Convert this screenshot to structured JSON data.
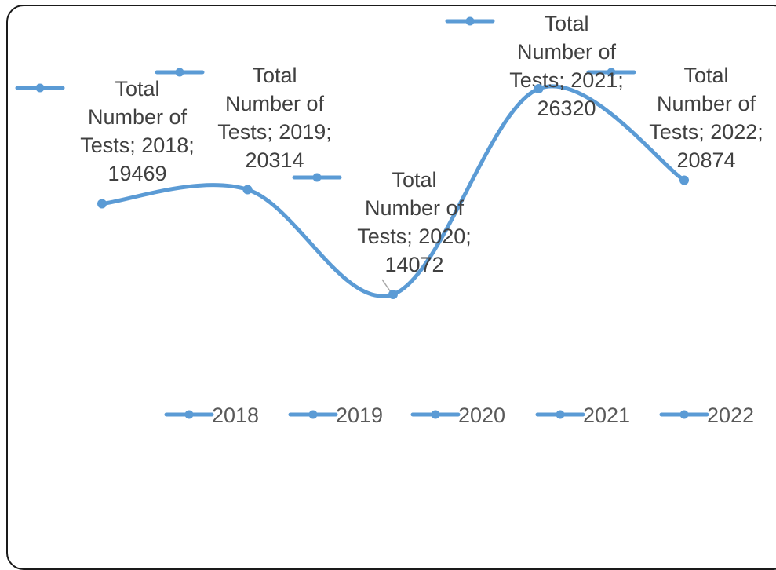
{
  "chart_data": {
    "type": "line",
    "smooth": true,
    "title": "",
    "xlabel": "",
    "ylabel": "",
    "grid": false,
    "legend": "bottom",
    "color": "#5b9bd5",
    "categories": [
      "2018",
      "2019",
      "2020",
      "2021",
      "2022"
    ],
    "series": [
      {
        "name": "Total Number of Tests",
        "values": [
          19469,
          20314,
          14072,
          26320,
          20874
        ]
      }
    ],
    "data_labels": [
      "Total Number of Tests; 2018; 19469",
      "Total Number of Tests; 2019; 20314",
      "Total Number of Tests; 2020; 14072",
      "Total Number of Tests; 2021; 26320",
      "Total Number of Tests; 2022; 20874"
    ],
    "label_lines": [
      [
        "Total",
        "Number of",
        "Tests; 2018;",
        "19469"
      ],
      [
        "Total",
        "Number of",
        "Tests; 2019;",
        "20314"
      ],
      [
        "Total",
        "Number of",
        "Tests; 2020;",
        "14072"
      ],
      [
        "Total",
        "Number of",
        "Tests; 2021;",
        "26320"
      ],
      [
        "Total",
        "Number of",
        "Tests; 2022;",
        "20874"
      ]
    ],
    "legend_entries": [
      "2018",
      "2019",
      "2020",
      "2021",
      "2022"
    ]
  }
}
